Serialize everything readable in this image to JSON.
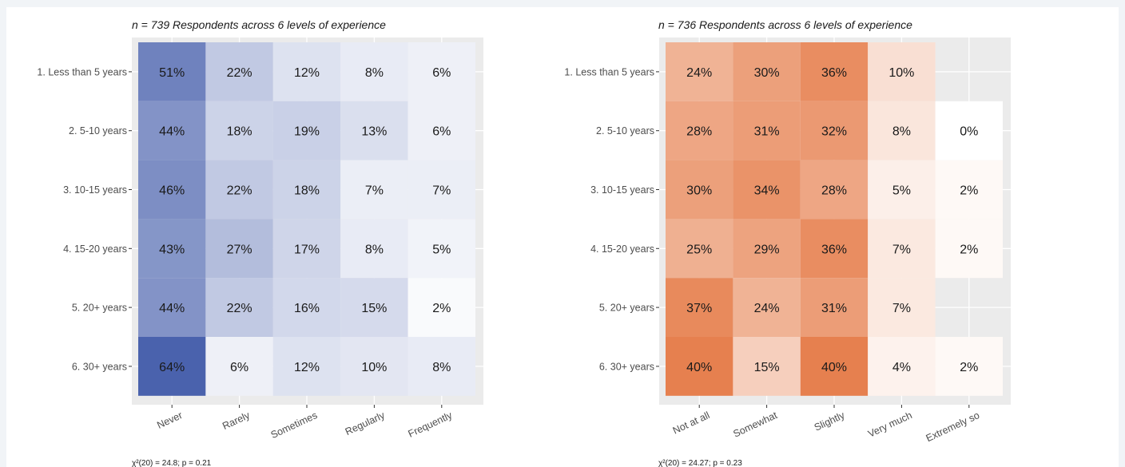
{
  "chart_data": [
    {
      "type": "heatmap",
      "subtitle": "n = 739 Respondents across 6 levels of experience",
      "caption": "χ²(20) = 24.8; p = 0.21",
      "y_categories": [
        "1. Less than 5 years",
        "2. 5-10 years",
        "3. 10-15 years",
        "4. 15-20 years",
        "5. 20+ years",
        "6. 30+ years"
      ],
      "x_categories": [
        "Never",
        "Rarely",
        "Sometimes",
        "Regularly",
        "Frequently"
      ],
      "values": [
        [
          51,
          22,
          12,
          8,
          6
        ],
        [
          44,
          18,
          19,
          13,
          6
        ],
        [
          46,
          22,
          18,
          7,
          7
        ],
        [
          43,
          27,
          17,
          8,
          5
        ],
        [
          44,
          22,
          16,
          15,
          2
        ],
        [
          64,
          6,
          12,
          10,
          8
        ]
      ],
      "labels": [
        [
          "51%",
          "22%",
          "12%",
          "8%",
          "6%"
        ],
        [
          "44%",
          "18%",
          "19%",
          "13%",
          "6%"
        ],
        [
          "46%",
          "22%",
          "18%",
          "7%",
          "7%"
        ],
        [
          "43%",
          "27%",
          "17%",
          "8%",
          "5%"
        ],
        [
          "44%",
          "22%",
          "16%",
          "15%",
          "2%"
        ],
        [
          "64%",
          "6%",
          "12%",
          "10%",
          "8%"
        ]
      ],
      "color_low": "#ffffff",
      "color_high": "#4a62ad",
      "panel_background": "#ebebeb",
      "grid": true
    },
    {
      "type": "heatmap",
      "subtitle": "n = 736 Respondents across 6 levels of experience",
      "caption": "χ²(20) = 24.27; p = 0.23",
      "y_categories": [
        "1. Less than 5 years",
        "2. 5-10 years",
        "3. 10-15 years",
        "4. 15-20 years",
        "5. 20+ years",
        "6. 30+ years"
      ],
      "x_categories": [
        "Not at all",
        "Somewhat",
        "Slightly",
        "Very much",
        "Extremely so"
      ],
      "values": [
        [
          24,
          30,
          36,
          10,
          null
        ],
        [
          28,
          31,
          32,
          8,
          0
        ],
        [
          30,
          34,
          28,
          5,
          2
        ],
        [
          25,
          29,
          36,
          7,
          2
        ],
        [
          37,
          24,
          31,
          7,
          null
        ],
        [
          40,
          15,
          40,
          4,
          2
        ]
      ],
      "labels": [
        [
          "24%",
          "30%",
          "36%",
          "10%",
          null
        ],
        [
          "28%",
          "31%",
          "32%",
          "8%",
          "0%"
        ],
        [
          "30%",
          "34%",
          "28%",
          "5%",
          "2%"
        ],
        [
          "25%",
          "29%",
          "36%",
          "7%",
          "2%"
        ],
        [
          "37%",
          "24%",
          "31%",
          "7%",
          null
        ],
        [
          "40%",
          "15%",
          "40%",
          "4%",
          "2%"
        ]
      ],
      "color_low": "#ffffff",
      "color_high": "#e6804f",
      "panel_background": "#ebebeb",
      "grid": true
    }
  ]
}
